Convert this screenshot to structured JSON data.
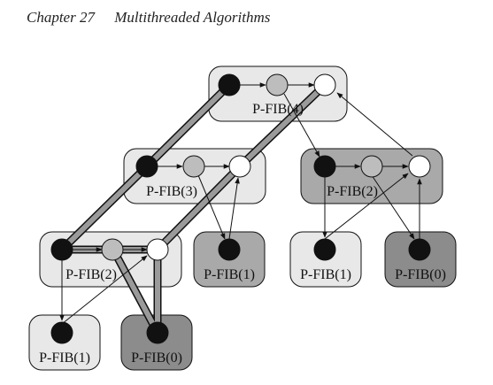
{
  "header": {
    "chapter": "Chapter 27",
    "title": "Multithreaded Algorithms"
  },
  "colors": {
    "frame_light": "#e8e8e8",
    "frame_medium": "#a9a9a9",
    "frame_dark": "#8c8c8c",
    "strand_black": "#111111",
    "strand_gray": "#bdbdbd",
    "strand_white": "#ffffff",
    "critical_path": "#9a9a9a"
  },
  "nodes": [
    {
      "label": "P-FIB(4)"
    },
    {
      "label": "P-FIB(3)"
    },
    {
      "label": "P-FIB(2)"
    },
    {
      "label": "P-FIB(2)"
    },
    {
      "label": "P-FIB(1)"
    },
    {
      "label": "P-FIB(1)"
    },
    {
      "label": "P-FIB(0)"
    },
    {
      "label": "P-FIB(1)"
    },
    {
      "label": "P-FIB(0)"
    }
  ]
}
